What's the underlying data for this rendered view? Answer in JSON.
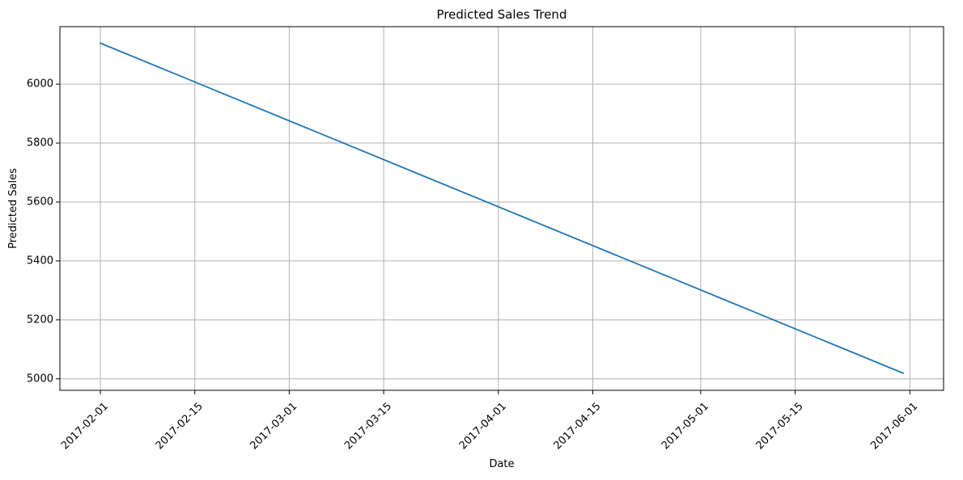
{
  "chart_data": {
    "type": "line",
    "title": "Predicted Sales Trend",
    "xlabel": "Date",
    "ylabel": "Predicted Sales",
    "x_tick_labels": [
      "2017-02-01",
      "2017-02-15",
      "2017-03-01",
      "2017-03-15",
      "2017-04-01",
      "2017-04-15",
      "2017-05-01",
      "2017-05-15",
      "2017-06-01"
    ],
    "y_tick_labels": [
      "5000",
      "5200",
      "5400",
      "5600",
      "5800",
      "6000"
    ],
    "y_ticks": [
      5000,
      5200,
      5400,
      5600,
      5800,
      6000
    ],
    "xlim": [
      "2017-01-26",
      "2017-06-06"
    ],
    "ylim": [
      4961,
      6195
    ],
    "grid": true,
    "series": [
      {
        "color": "#1f77b4",
        "x": [
          "2017-02-01",
          "2017-05-31"
        ],
        "y": [
          6139,
          5019
        ]
      }
    ]
  }
}
